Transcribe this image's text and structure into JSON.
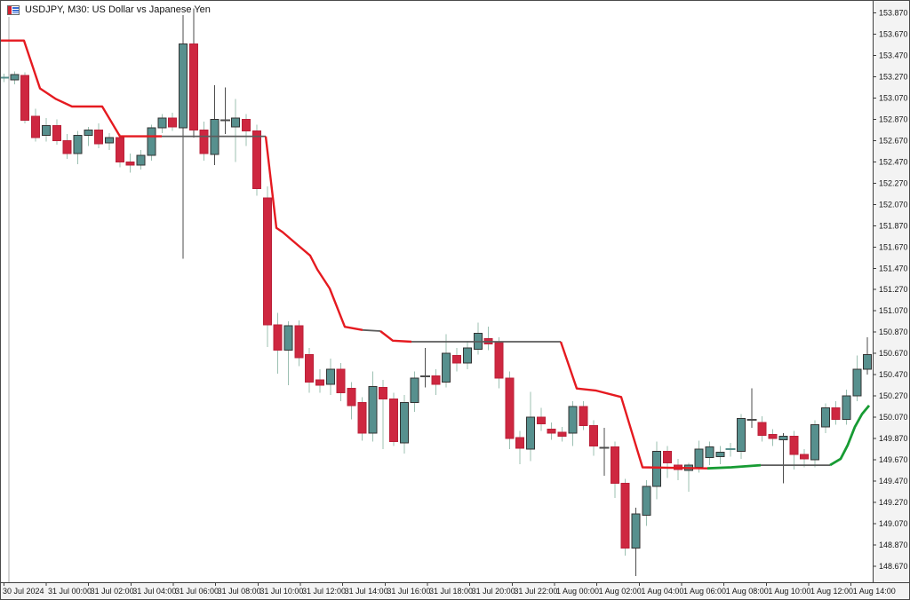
{
  "window": {
    "title": "USDJPY, M30:  US Dollar vs Japanese Yen"
  },
  "colors": {
    "chart_bg": "#ffffff",
    "axis_bg": "#f3f3f3",
    "axis_border": "#3f3f3f",
    "axis_text": "#161616",
    "bull_body": "#57908e",
    "bull_border": "#333333",
    "bear_body": "#ce2740",
    "bear_border": "#bb2038",
    "wick": "#9cc0b2",
    "wick_dark": "#4d4d4d",
    "line_red": "#e51a20",
    "line_gray": "#5c5c5c",
    "line_green": "#179b33",
    "separator_line": "#a8a8a8"
  },
  "price_axis": {
    "labels": [
      "153.870",
      "153.670",
      "153.470",
      "153.270",
      "153.070",
      "152.870",
      "152.670",
      "152.470",
      "152.270",
      "152.070",
      "151.870",
      "151.670",
      "151.470",
      "151.270",
      "151.070",
      "150.870",
      "150.670",
      "150.470",
      "150.270",
      "150.070",
      "149.870",
      "149.670",
      "149.470",
      "149.270",
      "149.070",
      "148.870",
      "148.670"
    ]
  },
  "time_axis": {
    "labels": [
      "30 Jul 2024",
      "31 Jul 00:00",
      "31 Jul 02:00",
      "31 Jul 04:00",
      "31 Jul 06:00",
      "31 Jul 08:00",
      "31 Jul 10:00",
      "31 Jul 12:00",
      "31 Jul 14:00",
      "31 Jul 16:00",
      "31 Jul 18:00",
      "31 Jul 20:00",
      "31 Jul 22:00",
      "1 Aug 00:00",
      "1 Aug 02:00",
      "1 Aug 04:00",
      "1 Aug 06:00",
      "1 Aug 08:00",
      "1 Aug 10:00",
      "1 Aug 12:00",
      "1 Aug 14:00"
    ]
  },
  "chart_data": {
    "type": "candlestick",
    "symbol": "USDJPY",
    "timeframe": "M30",
    "title": "USDJPY, M30:  US Dollar vs Japanese Yen",
    "price_axis_top": 153.87,
    "price_axis_bottom": 148.67,
    "grid": "off",
    "candles_ohlc": [
      [
        153.26,
        153.3,
        153.22,
        153.26
      ],
      [
        153.24,
        153.32,
        153.2,
        153.29
      ],
      [
        153.28,
        153.31,
        152.83,
        152.86
      ],
      [
        152.9,
        152.97,
        152.66,
        152.7
      ],
      [
        152.72,
        152.88,
        152.66,
        152.81
      ],
      [
        152.81,
        152.87,
        152.63,
        152.67
      ],
      [
        152.67,
        152.73,
        152.5,
        152.55
      ],
      [
        152.55,
        152.76,
        152.45,
        152.72
      ],
      [
        152.72,
        152.8,
        152.62,
        152.77
      ],
      [
        152.77,
        152.83,
        152.6,
        152.64
      ],
      [
        152.65,
        152.74,
        152.58,
        152.7
      ],
      [
        152.7,
        152.73,
        152.42,
        152.47
      ],
      [
        152.47,
        152.55,
        152.37,
        152.44
      ],
      [
        152.44,
        152.58,
        152.4,
        152.53
      ],
      [
        152.53,
        152.82,
        152.48,
        152.79
      ],
      [
        152.79,
        152.92,
        152.74,
        152.88
      ],
      [
        152.88,
        152.93,
        152.76,
        152.8
      ],
      [
        152.79,
        153.85,
        151.56,
        153.58,
        "d"
      ],
      [
        153.58,
        153.91,
        152.7,
        152.77,
        "d"
      ],
      [
        152.77,
        152.85,
        152.48,
        152.55
      ],
      [
        152.54,
        153.19,
        152.44,
        152.87,
        "d"
      ],
      [
        152.86,
        153.17,
        152.73,
        152.86,
        "d"
      ],
      [
        152.8,
        153.06,
        152.47,
        152.88
      ],
      [
        152.87,
        152.92,
        152.62,
        152.76
      ],
      [
        152.76,
        152.82,
        152.15,
        152.22
      ],
      [
        152.13,
        152.24,
        150.73,
        150.94
      ],
      [
        150.94,
        151.05,
        150.48,
        150.7
      ],
      [
        150.7,
        150.97,
        150.37,
        150.93
      ],
      [
        150.93,
        150.98,
        150.55,
        150.63
      ],
      [
        150.66,
        150.72,
        150.3,
        150.4
      ],
      [
        150.42,
        150.52,
        150.3,
        150.37
      ],
      [
        150.38,
        150.62,
        150.28,
        150.52
      ],
      [
        150.52,
        150.58,
        150.22,
        150.3
      ],
      [
        150.34,
        150.4,
        150.05,
        150.18
      ],
      [
        150.21,
        150.26,
        149.85,
        149.92
      ],
      [
        149.92,
        150.5,
        149.84,
        150.36
      ],
      [
        150.35,
        150.42,
        149.77,
        150.24
      ],
      [
        150.24,
        150.3,
        149.8,
        149.84
      ],
      [
        149.83,
        150.28,
        149.73,
        150.21
      ],
      [
        150.21,
        150.5,
        150.12,
        150.44
      ],
      [
        150.46,
        150.72,
        150.35,
        150.45,
        "d"
      ],
      [
        150.46,
        150.52,
        150.28,
        150.38
      ],
      [
        150.4,
        150.85,
        150.35,
        150.67
      ],
      [
        150.65,
        150.72,
        150.5,
        150.58
      ],
      [
        150.58,
        150.79,
        150.52,
        150.72
      ],
      [
        150.71,
        150.96,
        150.66,
        150.86
      ],
      [
        150.81,
        150.92,
        150.7,
        150.76
      ],
      [
        150.77,
        150.82,
        150.34,
        150.44
      ],
      [
        150.44,
        150.5,
        149.77,
        149.87
      ],
      [
        149.88,
        149.94,
        149.63,
        149.78
      ],
      [
        149.77,
        150.31,
        149.66,
        150.07
      ],
      [
        150.07,
        150.16,
        149.94,
        150.01
      ],
      [
        149.96,
        150.02,
        149.86,
        149.92
      ],
      [
        149.93,
        149.98,
        149.84,
        149.89
      ],
      [
        149.92,
        150.22,
        149.8,
        150.17
      ],
      [
        150.17,
        150.22,
        149.95,
        149.99
      ],
      [
        149.99,
        150.04,
        149.71,
        149.8
      ],
      [
        149.79,
        149.97,
        149.52,
        149.78,
        "d"
      ],
      [
        149.79,
        149.84,
        149.31,
        149.45
      ],
      [
        149.45,
        149.49,
        148.77,
        148.84
      ],
      [
        148.84,
        149.22,
        148.58,
        149.16,
        "d"
      ],
      [
        149.15,
        149.48,
        149.05,
        149.42
      ],
      [
        149.42,
        149.84,
        149.3,
        149.75
      ],
      [
        149.75,
        149.8,
        149.5,
        149.64
      ],
      [
        149.62,
        149.68,
        149.48,
        149.58
      ],
      [
        149.57,
        149.64,
        149.37,
        149.62
      ],
      [
        149.6,
        149.85,
        149.55,
        149.77
      ],
      [
        149.69,
        149.84,
        149.62,
        149.79
      ],
      [
        149.7,
        149.8,
        149.63,
        149.74
      ],
      [
        149.77,
        149.83,
        149.7,
        149.77
      ],
      [
        149.75,
        150.1,
        149.68,
        150.06
      ],
      [
        150.04,
        150.34,
        149.97,
        150.05,
        "d"
      ],
      [
        150.02,
        150.08,
        149.84,
        149.9
      ],
      [
        149.91,
        149.96,
        149.8,
        149.87
      ],
      [
        149.86,
        149.92,
        149.45,
        149.89,
        "d"
      ],
      [
        149.89,
        149.94,
        149.58,
        149.72
      ],
      [
        149.72,
        149.77,
        149.6,
        149.68
      ],
      [
        149.67,
        150.04,
        149.6,
        150.0
      ],
      [
        149.98,
        150.2,
        149.92,
        150.16
      ],
      [
        150.16,
        150.22,
        150.0,
        150.05
      ],
      [
        150.05,
        150.33,
        150.0,
        150.27
      ],
      [
        150.27,
        150.65,
        150.22,
        150.52
      ],
      [
        150.52,
        150.82,
        150.47,
        150.66,
        "d"
      ]
    ],
    "trailing_stop_segments": [
      {
        "color": "red",
        "points": [
          [
            0,
            153.61
          ],
          [
            26,
            153.61
          ],
          [
            44,
            153.16
          ],
          [
            62,
            153.06
          ],
          [
            80,
            152.99
          ],
          [
            114,
            152.99
          ],
          [
            134,
            152.71
          ],
          [
            181,
            152.71
          ]
        ]
      },
      {
        "color": "gray",
        "points": [
          [
            181,
            152.71
          ],
          [
            298,
            152.71
          ]
        ]
      },
      {
        "color": "red",
        "points": [
          [
            298,
            152.71
          ],
          [
            310,
            151.85
          ],
          [
            317,
            151.81
          ],
          [
            331,
            151.71
          ],
          [
            348,
            151.59
          ],
          [
            356,
            151.46
          ],
          [
            370,
            151.28
          ],
          [
            387,
            150.92
          ],
          [
            407,
            150.89
          ]
        ]
      },
      {
        "color": "gray",
        "points": [
          [
            407,
            150.89
          ],
          [
            427,
            150.88
          ]
        ]
      },
      {
        "color": "red",
        "points": [
          [
            427,
            150.88
          ],
          [
            441,
            150.79
          ],
          [
            462,
            150.78
          ]
        ]
      },
      {
        "color": "gray",
        "points": [
          [
            462,
            150.78
          ],
          [
            630,
            150.78
          ]
        ]
      },
      {
        "color": "red",
        "points": [
          [
            630,
            150.78
          ],
          [
            648,
            150.34
          ],
          [
            670,
            150.32
          ],
          [
            698,
            150.26
          ],
          [
            722,
            149.6
          ],
          [
            795,
            149.59
          ]
        ]
      },
      {
        "color": "green",
        "points": [
          [
            795,
            149.59
          ],
          [
            822,
            149.6
          ],
          [
            855,
            149.62
          ]
        ]
      },
      {
        "color": "gray",
        "points": [
          [
            855,
            149.62
          ],
          [
            933,
            149.62
          ]
        ]
      },
      {
        "color": "green",
        "points": [
          [
            933,
            149.62
          ],
          [
            945,
            149.68
          ],
          [
            953,
            149.81
          ],
          [
            961,
            149.98
          ],
          [
            969,
            150.1
          ],
          [
            977,
            150.18
          ]
        ]
      }
    ]
  }
}
